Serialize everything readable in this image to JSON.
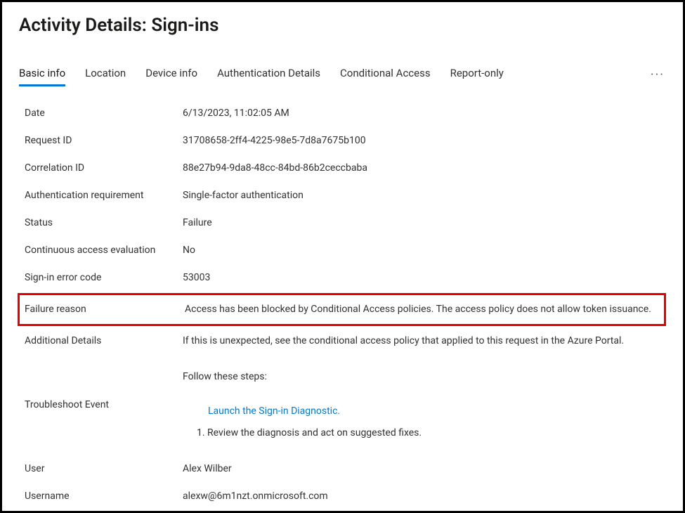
{
  "pageTitle": "Activity Details: Sign-ins",
  "tabs": {
    "basicInfo": "Basic info",
    "location": "Location",
    "deviceInfo": "Device info",
    "authDetails": "Authentication Details",
    "conditionalAccess": "Conditional Access",
    "reportOnly": "Report-only"
  },
  "labels": {
    "date": "Date",
    "requestId": "Request ID",
    "correlationId": "Correlation ID",
    "authRequirement": "Authentication requirement",
    "status": "Status",
    "cae": "Continuous access evaluation",
    "errorCode": "Sign-in error code",
    "failureReason": "Failure reason",
    "additionalDetails": "Additional Details",
    "troubleshoot": "Troubleshoot Event",
    "user": "User",
    "username": "Username"
  },
  "values": {
    "date": "6/13/2023, 11:02:05 AM",
    "requestId": "31708658-2ff4-4225-98e5-7d8a7675b100",
    "correlationId": "88e27b94-9da8-48cc-84bd-86b2ceccbaba",
    "authRequirement": "Single-factor authentication",
    "status": "Failure",
    "cae": "No",
    "errorCode": "53003",
    "failureReason": "Access has been blocked by Conditional Access policies. The access policy does not allow token issuance.",
    "additionalDetails": "If this is unexpected, see the conditional access policy that applied to this request in the Azure Portal.",
    "troubleshootIntro": "Follow these steps:",
    "troubleshootLink": "Launch the Sign-in Diagnostic.",
    "troubleshootStep1": "1. Review the diagnosis and act on suggested fixes.",
    "user": "Alex Wilber",
    "username": "alexw@6m1nzt.onmicrosoft.com"
  },
  "colors": {
    "accent": "#0078d4",
    "highlightBorder": "#e60000",
    "text": "#323130",
    "background": "#ffffff"
  }
}
